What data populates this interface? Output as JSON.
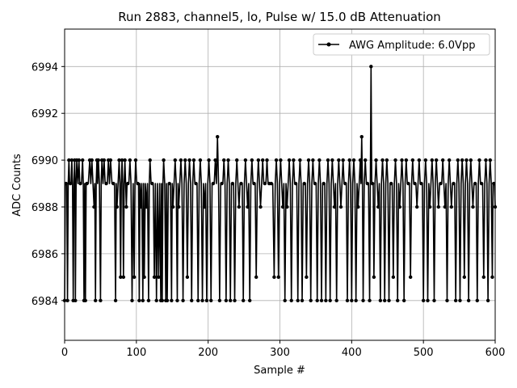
{
  "chart_data": {
    "type": "line",
    "title": "Run 2883, channel5, lo, Pulse w/ 15.0 dB Attenuation",
    "xlabel": "Sample #",
    "ylabel": "ADC Counts",
    "xlim": [
      0,
      600
    ],
    "ylim": [
      6982.3,
      6995.6
    ],
    "xticks": [
      0,
      100,
      200,
      300,
      400,
      500,
      600
    ],
    "yticks": [
      6984,
      6986,
      6988,
      6990,
      6992,
      6994
    ],
    "grid": true,
    "legend_position": "top-right",
    "series": [
      {
        "name": "AWG Amplitude: 6.0Vpp",
        "color": "#000000",
        "marker": "circle",
        "baseline": 6989,
        "points": [
          [
            0,
            6984
          ],
          [
            2,
            6989
          ],
          [
            4,
            6984
          ],
          [
            6,
            6990
          ],
          [
            8,
            6989
          ],
          [
            10,
            6990
          ],
          [
            12,
            6984
          ],
          [
            14,
            6990
          ],
          [
            15,
            6984
          ],
          [
            17,
            6990
          ],
          [
            20,
            6990
          ],
          [
            22,
            6989
          ],
          [
            25,
            6990
          ],
          [
            27,
            6984
          ],
          [
            29,
            6984
          ],
          [
            31,
            6989
          ],
          [
            35,
            6990
          ],
          [
            38,
            6990
          ],
          [
            41,
            6988
          ],
          [
            43,
            6984
          ],
          [
            45,
            6990
          ],
          [
            47,
            6990
          ],
          [
            50,
            6984
          ],
          [
            52,
            6990
          ],
          [
            55,
            6990
          ],
          [
            58,
            6989
          ],
          [
            61,
            6990
          ],
          [
            64,
            6990
          ],
          [
            68,
            6989
          ],
          [
            71,
            6984
          ],
          [
            73,
            6988
          ],
          [
            76,
            6990
          ],
          [
            78,
            6985
          ],
          [
            80,
            6990
          ],
          [
            82,
            6985
          ],
          [
            84,
            6990
          ],
          [
            86,
            6988
          ],
          [
            88,
            6989
          ],
          [
            91,
            6990
          ],
          [
            94,
            6984
          ],
          [
            97,
            6985
          ],
          [
            99,
            6990
          ],
          [
            102,
            6989
          ],
          [
            104,
            6984
          ],
          [
            106,
            6988
          ],
          [
            109,
            6984
          ],
          [
            111,
            6985
          ],
          [
            114,
            6988
          ],
          [
            117,
            6984
          ],
          [
            119,
            6990
          ],
          [
            122,
            6989
          ],
          [
            125,
            6985
          ],
          [
            128,
            6984
          ],
          [
            131,
            6985
          ],
          [
            134,
            6984
          ],
          [
            136,
            6984
          ],
          [
            138,
            6990
          ],
          [
            141,
            6984
          ],
          [
            143,
            6984
          ],
          [
            146,
            6989
          ],
          [
            149,
            6984
          ],
          [
            151,
            6988
          ],
          [
            154,
            6990
          ],
          [
            157,
            6984
          ],
          [
            159,
            6988
          ],
          [
            162,
            6990
          ],
          [
            165,
            6984
          ],
          [
            168,
            6990
          ],
          [
            171,
            6985
          ],
          [
            174,
            6990
          ],
          [
            177,
            6984
          ],
          [
            180,
            6990
          ],
          [
            183,
            6989
          ],
          [
            186,
            6984
          ],
          [
            189,
            6990
          ],
          [
            192,
            6984
          ],
          [
            195,
            6988
          ],
          [
            198,
            6984
          ],
          [
            201,
            6990
          ],
          [
            204,
            6984
          ],
          [
            207,
            6989
          ],
          [
            210,
            6990
          ],
          [
            213,
            6991
          ],
          [
            216,
            6984
          ],
          [
            219,
            6989
          ],
          [
            222,
            6990
          ],
          [
            225,
            6984
          ],
          [
            228,
            6990
          ],
          [
            231,
            6984
          ],
          [
            234,
            6989
          ],
          [
            237,
            6984
          ],
          [
            240,
            6990
          ],
          [
            243,
            6988
          ],
          [
            246,
            6989
          ],
          [
            249,
            6984
          ],
          [
            252,
            6990
          ],
          [
            255,
            6988
          ],
          [
            258,
            6984
          ],
          [
            261,
            6990
          ],
          [
            264,
            6989
          ],
          [
            267,
            6985
          ],
          [
            270,
            6990
          ],
          [
            273,
            6988
          ],
          [
            276,
            6990
          ],
          [
            279,
            6989
          ],
          [
            282,
            6990
          ],
          [
            285,
            6989
          ],
          [
            288,
            6989
          ],
          [
            292,
            6985
          ],
          [
            295,
            6990
          ],
          [
            298,
            6985
          ],
          [
            301,
            6990
          ],
          [
            304,
            6988
          ],
          [
            307,
            6984
          ],
          [
            310,
            6988
          ],
          [
            313,
            6990
          ],
          [
            316,
            6984
          ],
          [
            319,
            6990
          ],
          [
            322,
            6989
          ],
          [
            325,
            6984
          ],
          [
            328,
            6990
          ],
          [
            331,
            6984
          ],
          [
            334,
            6989
          ],
          [
            337,
            6985
          ],
          [
            340,
            6990
          ],
          [
            343,
            6984
          ],
          [
            346,
            6990
          ],
          [
            349,
            6989
          ],
          [
            352,
            6984
          ],
          [
            355,
            6990
          ],
          [
            358,
            6984
          ],
          [
            361,
            6989
          ],
          [
            364,
            6984
          ],
          [
            367,
            6990
          ],
          [
            370,
            6984
          ],
          [
            373,
            6990
          ],
          [
            376,
            6988
          ],
          [
            379,
            6984
          ],
          [
            382,
            6990
          ],
          [
            385,
            6988
          ],
          [
            388,
            6990
          ],
          [
            391,
            6989
          ],
          [
            394,
            6984
          ],
          [
            397,
            6990
          ],
          [
            400,
            6984
          ],
          [
            403,
            6990
          ],
          [
            406,
            6984
          ],
          [
            409,
            6988
          ],
          [
            412,
            6990
          ],
          [
            414,
            6991
          ],
          [
            416,
            6984
          ],
          [
            419,
            6990
          ],
          [
            422,
            6989
          ],
          [
            425,
            6984
          ],
          [
            427,
            6994
          ],
          [
            429,
            6989
          ],
          [
            431,
            6985
          ],
          [
            434,
            6990
          ],
          [
            437,
            6988
          ],
          [
            440,
            6984
          ],
          [
            443,
            6990
          ],
          [
            446,
            6984
          ],
          [
            449,
            6990
          ],
          [
            452,
            6984
          ],
          [
            455,
            6989
          ],
          [
            458,
            6985
          ],
          [
            461,
            6990
          ],
          [
            464,
            6984
          ],
          [
            467,
            6988
          ],
          [
            470,
            6990
          ],
          [
            473,
            6984
          ],
          [
            476,
            6990
          ],
          [
            479,
            6989
          ],
          [
            482,
            6985
          ],
          [
            485,
            6990
          ],
          [
            488,
            6989
          ],
          [
            491,
            6988
          ],
          [
            494,
            6990
          ],
          [
            497,
            6989
          ],
          [
            500,
            6984
          ],
          [
            503,
            6990
          ],
          [
            506,
            6984
          ],
          [
            509,
            6988
          ],
          [
            512,
            6990
          ],
          [
            515,
            6984
          ],
          [
            518,
            6990
          ],
          [
            521,
            6988
          ],
          [
            524,
            6989
          ],
          [
            527,
            6990
          ],
          [
            530,
            6988
          ],
          [
            533,
            6984
          ],
          [
            536,
            6990
          ],
          [
            539,
            6988
          ],
          [
            542,
            6989
          ],
          [
            545,
            6984
          ],
          [
            548,
            6990
          ],
          [
            551,
            6984
          ],
          [
            554,
            6990
          ],
          [
            557,
            6985
          ],
          [
            560,
            6990
          ],
          [
            563,
            6984
          ],
          [
            566,
            6990
          ],
          [
            569,
            6988
          ],
          [
            572,
            6989
          ],
          [
            575,
            6984
          ],
          [
            578,
            6990
          ],
          [
            581,
            6989
          ],
          [
            584,
            6985
          ],
          [
            587,
            6990
          ],
          [
            590,
            6984
          ],
          [
            593,
            6990
          ],
          [
            596,
            6985
          ],
          [
            598,
            6989
          ],
          [
            600,
            6988
          ]
        ]
      }
    ]
  }
}
